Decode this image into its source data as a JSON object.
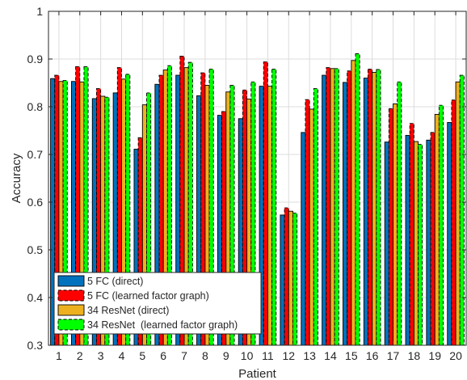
{
  "chart_data": {
    "type": "bar",
    "xlabel": "Patient",
    "ylabel": "Accuracy",
    "ylim": [
      0.3,
      1
    ],
    "yticks": [
      0.3,
      0.4,
      0.5,
      0.6,
      0.7,
      0.8,
      0.9,
      1
    ],
    "ytick_labels": [
      "0.3",
      "0.4",
      "0.5",
      "0.6",
      "0.7",
      "0.8",
      "0.9",
      "1"
    ],
    "grid": true,
    "legend_position": "bottom-left",
    "categories": [
      "1",
      "2",
      "3",
      "4",
      "5",
      "6",
      "7",
      "8",
      "9",
      "10",
      "11",
      "12",
      "13",
      "14",
      "15",
      "16",
      "17",
      "18",
      "19",
      "20"
    ],
    "series": [
      {
        "name": "5 FC (direct)",
        "color": "#0072BD",
        "dashed": false,
        "values": [
          0.859,
          0.853,
          0.817,
          0.829,
          0.711,
          0.847,
          0.866,
          0.823,
          0.782,
          0.775,
          0.843,
          0.573,
          0.746,
          0.866,
          0.851,
          0.86,
          0.726,
          0.74,
          0.73,
          0.767
        ]
      },
      {
        "name": "5 FC (learned factor graph)",
        "color": "#FF0000",
        "dashed": true,
        "values": [
          0.866,
          0.884,
          0.838,
          0.882,
          0.735,
          0.866,
          0.906,
          0.871,
          0.79,
          0.835,
          0.894,
          0.588,
          0.815,
          0.882,
          0.875,
          0.879,
          0.796,
          0.765,
          0.746,
          0.814
        ]
      },
      {
        "name": "34 ResNet (direct)",
        "color": "#EDB120",
        "dashed": false,
        "values": [
          0.853,
          0.852,
          0.822,
          0.858,
          0.804,
          0.877,
          0.882,
          0.845,
          0.831,
          0.816,
          0.843,
          0.581,
          0.795,
          0.88,
          0.897,
          0.872,
          0.806,
          0.727,
          0.784,
          0.852
        ]
      },
      {
        "name": "34 ResNet  (learned factor graph)",
        "color": "#00FF00",
        "dashed": true,
        "values": [
          0.855,
          0.884,
          0.82,
          0.868,
          0.829,
          0.886,
          0.893,
          0.879,
          0.845,
          0.852,
          0.879,
          0.577,
          0.838,
          0.88,
          0.911,
          0.878,
          0.852,
          0.721,
          0.803,
          0.866
        ]
      }
    ]
  }
}
